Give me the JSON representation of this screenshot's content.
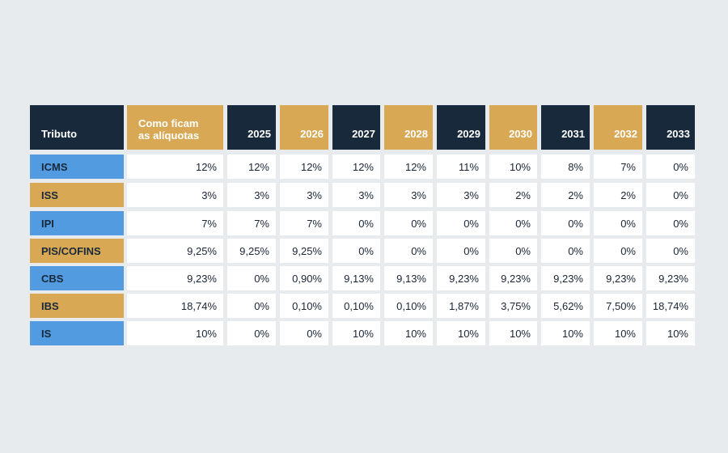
{
  "table": {
    "header": {
      "tributo": "Tributo",
      "aliquotas_line1": "Como ficam",
      "aliquotas_line2": "as alíquotas",
      "years": [
        "2025",
        "2026",
        "2027",
        "2028",
        "2029",
        "2030",
        "2031",
        "2032",
        "2033"
      ]
    },
    "rows": [
      {
        "label": "ICMS",
        "color": "blue",
        "values": [
          "12%",
          "12%",
          "12%",
          "12%",
          "12%",
          "11%",
          "10%",
          "8%",
          "7%",
          "0%"
        ]
      },
      {
        "label": "ISS",
        "color": "gold",
        "values": [
          "3%",
          "3%",
          "3%",
          "3%",
          "3%",
          "3%",
          "2%",
          "2%",
          "2%",
          "0%"
        ]
      },
      {
        "label": "IPI",
        "color": "blue",
        "values": [
          "7%",
          "7%",
          "7%",
          "0%",
          "0%",
          "0%",
          "0%",
          "0%",
          "0%",
          "0%"
        ]
      },
      {
        "label": "PIS/COFINS",
        "color": "gold",
        "values": [
          "9,25%",
          "9,25%",
          "9,25%",
          "0%",
          "0%",
          "0%",
          "0%",
          "0%",
          "0%",
          "0%"
        ]
      },
      {
        "label": "CBS",
        "color": "blue",
        "values": [
          "9,23%",
          "0%",
          "0,90%",
          "9,13%",
          "9,13%",
          "9,23%",
          "9,23%",
          "9,23%",
          "9,23%",
          "9,23%"
        ]
      },
      {
        "label": "IBS",
        "color": "gold",
        "values": [
          "18,74%",
          "0%",
          "0,10%",
          "0,10%",
          "0,10%",
          "1,87%",
          "3,75%",
          "5,62%",
          "7,50%",
          "18,74%"
        ]
      },
      {
        "label": "IS",
        "color": "blue",
        "values": [
          "10%",
          "0%",
          "0%",
          "10%",
          "10%",
          "10%",
          "10%",
          "10%",
          "10%",
          "10%"
        ]
      }
    ]
  },
  "colors": {
    "navy": "#17293a",
    "gold": "#d9a855",
    "blue": "#539be0",
    "background": "#e8ebee"
  }
}
